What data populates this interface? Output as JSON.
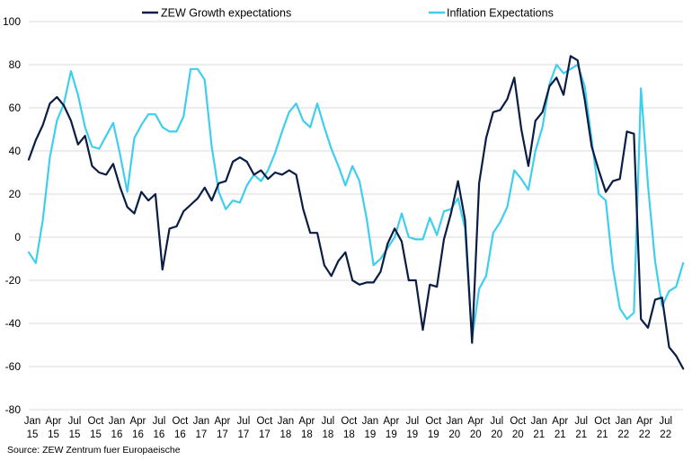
{
  "chart_data": {
    "type": "line",
    "title": "",
    "xlabel": "",
    "ylabel": "",
    "ylim": [
      -80,
      100
    ],
    "yticks": [
      100,
      80,
      60,
      40,
      20,
      0,
      -20,
      -40,
      -60,
      -80
    ],
    "grid": true,
    "legend_position": "top",
    "start": "Jan 2015",
    "x_tick_labels": [
      {
        "month": "Jan",
        "year": "15"
      },
      {
        "month": "Apr",
        "year": "15"
      },
      {
        "month": "Jul",
        "year": "15"
      },
      {
        "month": "Oct",
        "year": "15"
      },
      {
        "month": "Jan",
        "year": "16"
      },
      {
        "month": "Apr",
        "year": "16"
      },
      {
        "month": "Jul",
        "year": "16"
      },
      {
        "month": "Oct",
        "year": "16"
      },
      {
        "month": "Jan",
        "year": "17"
      },
      {
        "month": "Apr",
        "year": "17"
      },
      {
        "month": "Jul",
        "year": "17"
      },
      {
        "month": "Oct",
        "year": "17"
      },
      {
        "month": "Jan",
        "year": "18"
      },
      {
        "month": "Apr",
        "year": "18"
      },
      {
        "month": "Jul",
        "year": "18"
      },
      {
        "month": "Oct",
        "year": "18"
      },
      {
        "month": "Jan",
        "year": "19"
      },
      {
        "month": "Apr",
        "year": "19"
      },
      {
        "month": "Jul",
        "year": "19"
      },
      {
        "month": "Oct",
        "year": "19"
      },
      {
        "month": "Jan",
        "year": "20"
      },
      {
        "month": "Apr",
        "year": "20"
      },
      {
        "month": "Jul",
        "year": "20"
      },
      {
        "month": "Oct",
        "year": "20"
      },
      {
        "month": "Jan",
        "year": "21"
      },
      {
        "month": "Apr",
        "year": "21"
      },
      {
        "month": "Jul",
        "year": "21"
      },
      {
        "month": "Oct",
        "year": "21"
      },
      {
        "month": "Jan",
        "year": "22"
      },
      {
        "month": "Apr",
        "year": "22"
      },
      {
        "month": "Jul",
        "year": "22"
      }
    ],
    "series": [
      {
        "name": "ZEW Growth expectations",
        "color": "#0b1d45",
        "values": [
          36,
          45,
          52,
          62,
          65,
          61,
          54,
          43,
          47,
          33,
          30,
          29,
          34,
          23,
          14,
          11,
          21,
          17,
          20,
          -15,
          4,
          5,
          12,
          15,
          18,
          23,
          17,
          25,
          26,
          35,
          37,
          35,
          29,
          31,
          27,
          30,
          29,
          31,
          29,
          13,
          2,
          2,
          -13,
          -18,
          -11,
          -7,
          -20,
          -22,
          -21,
          -21,
          -16,
          -3,
          4,
          -2,
          -20,
          -20,
          -43,
          -22,
          -23,
          -1,
          11,
          26,
          8,
          -49,
          25,
          46,
          58,
          59,
          64,
          74,
          50,
          33,
          54,
          58,
          70,
          74,
          66,
          84,
          82,
          64,
          42,
          31,
          21,
          26,
          27,
          49,
          48,
          -38,
          -42,
          -29,
          -28,
          -51,
          -55,
          -61
        ]
      },
      {
        "name": "Inflation Expectations",
        "color": "#3fcfee",
        "values": [
          -7,
          -12,
          8,
          37,
          54,
          62,
          77,
          66,
          51,
          42,
          41,
          47,
          53,
          38,
          21,
          46,
          52,
          57,
          57,
          51,
          49,
          49,
          56,
          78,
          78,
          73,
          42,
          21,
          13,
          17,
          16,
          24,
          29,
          26,
          31,
          39,
          49,
          58,
          62,
          54,
          51,
          62,
          51,
          41,
          33,
          24,
          33,
          26,
          9,
          -13,
          -10,
          -5,
          0,
          11,
          0,
          -1,
          -1,
          9,
          1,
          12,
          13,
          18,
          4,
          -47,
          -24,
          -18,
          2,
          7,
          14,
          31,
          27,
          22,
          40,
          51,
          71,
          80,
          76,
          78,
          80,
          70,
          45,
          20,
          17,
          -14,
          -33,
          -38,
          -35,
          69,
          24,
          -11,
          -32,
          -25,
          -23,
          -12
        ]
      }
    ]
  },
  "source": "Source: ZEW Zentrum fuer Europaeische"
}
